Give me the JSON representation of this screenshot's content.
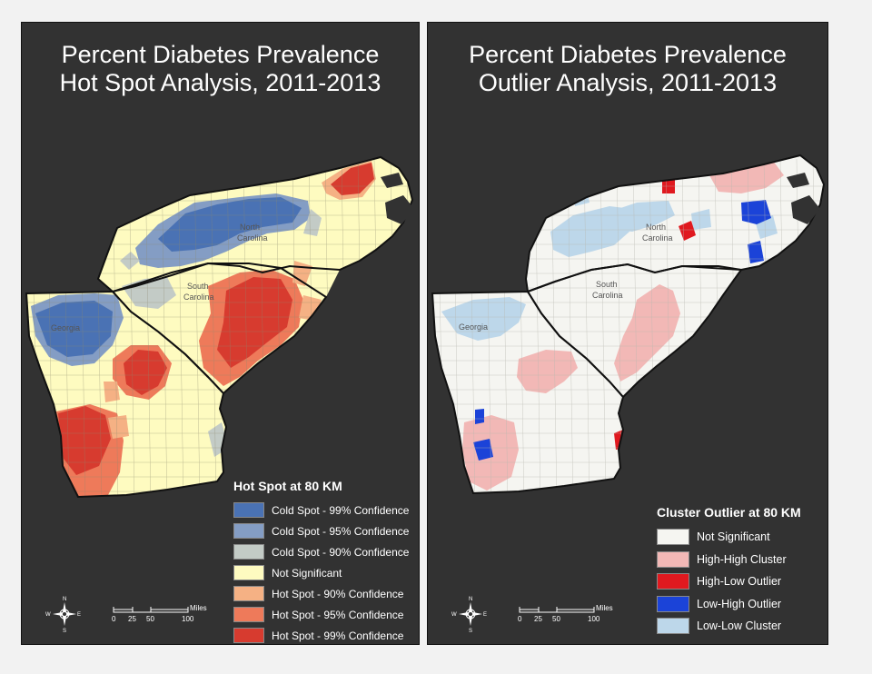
{
  "left_map": {
    "title_line1": "Percent Diabetes Prevalence",
    "title_line2": "Hot Spot Analysis, 2011-2013",
    "state_labels": [
      {
        "name": "North",
        "sub": "Carolina"
      },
      {
        "name": "South",
        "sub": "Carolina"
      },
      {
        "name": "Georgia"
      }
    ],
    "legend": {
      "title": "Hot Spot at 80 KM",
      "items": [
        {
          "label": "Cold Spot - 99% Confidence",
          "color": "#4a72b4"
        },
        {
          "label": "Cold Spot - 95% Confidence",
          "color": "#849dc4"
        },
        {
          "label": "Cold Spot - 90% Confidence",
          "color": "#c3cbc6"
        },
        {
          "label": "Not Significant",
          "color": "#fefbc0"
        },
        {
          "label": "Hot Spot - 90% Confidence",
          "color": "#f5b184"
        },
        {
          "label": "Hot Spot - 95% Confidence",
          "color": "#ee7a5a"
        },
        {
          "label": "Hot Spot - 99% Confidence",
          "color": "#d73b2f"
        }
      ]
    },
    "scale": {
      "ticks": [
        "0",
        "25",
        "50",
        "100"
      ],
      "unit": "Miles"
    },
    "compass": {
      "n": "N",
      "s": "S",
      "e": "E",
      "w": "W"
    }
  },
  "right_map": {
    "title_line1": "Percent Diabetes Prevalence",
    "title_line2": "Outlier Analysis, 2011-2013",
    "state_labels": [
      {
        "name": "North",
        "sub": "Carolina"
      },
      {
        "name": "South",
        "sub": "Carolina"
      },
      {
        "name": "Georgia"
      }
    ],
    "legend": {
      "title": "Cluster Outlier at 80 KM",
      "items": [
        {
          "label": "Not Significant",
          "color": "#f5f5f1"
        },
        {
          "label": "High-High Cluster",
          "color": "#f2b8b6"
        },
        {
          "label": "High-Low Outlier",
          "color": "#e0191f"
        },
        {
          "label": "Low-High Outlier",
          "color": "#1b43d8"
        },
        {
          "label": "Low-Low Cluster",
          "color": "#bdd7ea"
        }
      ]
    },
    "scale": {
      "ticks": [
        "0",
        "25",
        "50",
        "100"
      ],
      "unit": "Miles"
    },
    "compass": {
      "n": "N",
      "s": "S",
      "e": "E",
      "w": "W"
    }
  }
}
